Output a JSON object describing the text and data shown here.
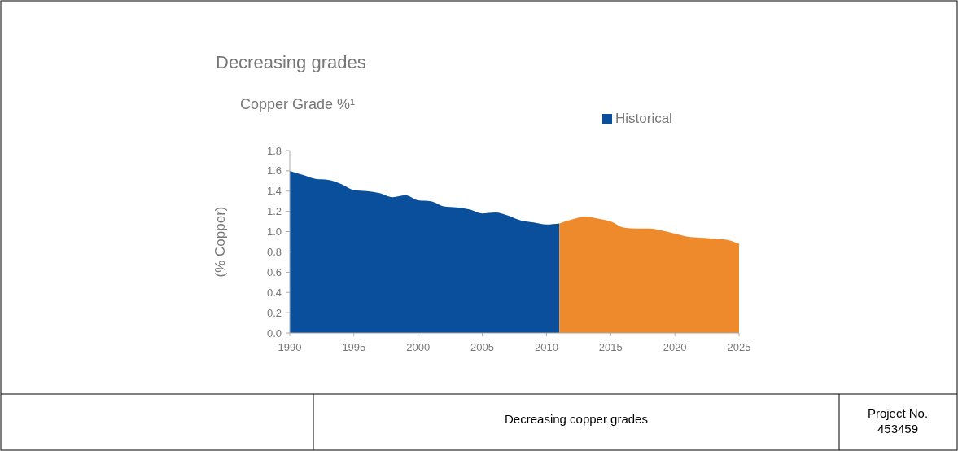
{
  "chart_data": {
    "type": "area",
    "title": "Decreasing grades",
    "subtitle": "Copper Grade %¹",
    "ylabel": "(% Copper)",
    "series": [
      {
        "name": "Historical",
        "color": "#0a4f9c",
        "x": [
          1990,
          1991,
          1992,
          1993,
          1994,
          1995,
          1996,
          1997,
          1998,
          1999,
          2000,
          2001,
          2002,
          2003,
          2004,
          2005,
          2006,
          2007,
          2008,
          2009,
          2010,
          2011
        ],
        "values": [
          1.6,
          1.56,
          1.52,
          1.51,
          1.47,
          1.41,
          1.4,
          1.38,
          1.34,
          1.36,
          1.31,
          1.3,
          1.25,
          1.24,
          1.22,
          1.18,
          1.19,
          1.16,
          1.11,
          1.09,
          1.07,
          1.08
        ]
      },
      {
        "color": "#ee8a2c",
        "x": [
          2011,
          2012,
          2013,
          2014,
          2015,
          2016,
          2017,
          2018,
          2019,
          2020,
          2021,
          2022,
          2023,
          2024,
          2025
        ],
        "values": [
          1.08,
          1.12,
          1.15,
          1.13,
          1.1,
          1.04,
          1.03,
          1.03,
          1.01,
          0.98,
          0.95,
          0.94,
          0.93,
          0.92,
          0.88
        ]
      }
    ],
    "xlim": [
      1990,
      2025
    ],
    "xticks": [
      1990,
      1995,
      2000,
      2005,
      2010,
      2015,
      2020,
      2025
    ],
    "ylim": [
      0,
      1.8
    ],
    "yticks": [
      {
        "value": 0,
        "label": "0.0"
      },
      {
        "value": 0.2,
        "label": "0.2"
      },
      {
        "value": 0.4,
        "label": "0.4"
      },
      {
        "value": 0.6,
        "label": "0.6"
      },
      {
        "value": 0.8,
        "label": "0.8"
      },
      {
        "value": 1.0,
        "label": "1.0"
      },
      {
        "value": 1.2,
        "label": "1.2"
      },
      {
        "value": 1.4,
        "label": "1.4"
      },
      {
        "value": 1.6,
        "label": "1.6"
      },
      {
        "value": 1.8,
        "label": "1.8"
      }
    ],
    "grid": false,
    "legend": "top right",
    "annotations": [
      "Decreasing copper grades",
      "Project No. 453459"
    ]
  }
}
